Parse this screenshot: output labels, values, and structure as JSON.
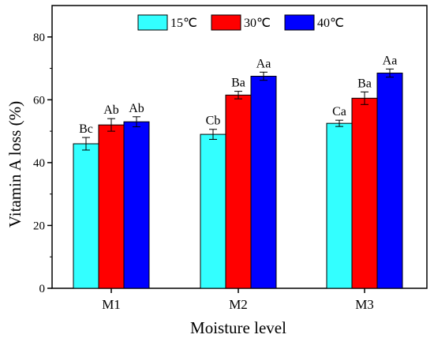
{
  "chart_data": {
    "type": "bar",
    "title": "",
    "xlabel": "Moisture level",
    "ylabel": "Vitamin A loss (%)",
    "ylim": [
      0,
      90
    ],
    "yticks": [
      0,
      20,
      40,
      60,
      80
    ],
    "grid": false,
    "legend_position": "top",
    "categories": [
      "M1",
      "M2",
      "M3"
    ],
    "series": [
      {
        "name": "15℃",
        "color": "#33ffff",
        "values": [
          46.0,
          49.0,
          52.5
        ],
        "errors": [
          2.0,
          1.6,
          1.0
        ],
        "labels": [
          "Bc",
          "Cb",
          "Ca"
        ]
      },
      {
        "name": "30℃",
        "color": "#ff0000",
        "values": [
          52.0,
          61.5,
          60.5
        ],
        "errors": [
          2.0,
          1.2,
          2.0
        ],
        "labels": [
          "Ab",
          "Ba",
          "Ba"
        ]
      },
      {
        "name": "40℃",
        "color": "#0000ff",
        "values": [
          53.0,
          67.5,
          68.5
        ],
        "errors": [
          1.6,
          1.3,
          1.3
        ],
        "labels": [
          "Ab",
          "Aa",
          "Aa"
        ]
      }
    ]
  }
}
